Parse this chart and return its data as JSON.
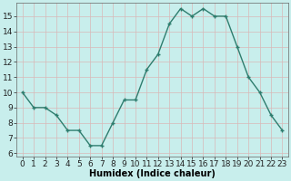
{
  "x": [
    0,
    1,
    2,
    3,
    4,
    5,
    6,
    7,
    8,
    9,
    10,
    11,
    12,
    13,
    14,
    15,
    16,
    17,
    18,
    19,
    20,
    21,
    22,
    23
  ],
  "y": [
    10,
    9,
    9,
    8.5,
    7.5,
    7.5,
    6.5,
    6.5,
    8,
    9.5,
    9.5,
    11.5,
    12.5,
    14.5,
    15.5,
    15,
    15.5,
    15,
    15,
    13,
    11,
    10,
    8.5,
    7.5
  ],
  "line_color": "#2e7d6e",
  "marker_color": "#2e7d6e",
  "bg_color": "#c8eeec",
  "grid_color": "#d8b8b8",
  "xlabel": "Humidex (Indice chaleur)",
  "xlabel_fontsize": 7,
  "ylabel_ticks": [
    6,
    7,
    8,
    9,
    10,
    11,
    12,
    13,
    14,
    15
  ],
  "xlim": [
    -0.5,
    23.5
  ],
  "ylim": [
    5.8,
    15.9
  ],
  "tick_fontsize": 6.5
}
